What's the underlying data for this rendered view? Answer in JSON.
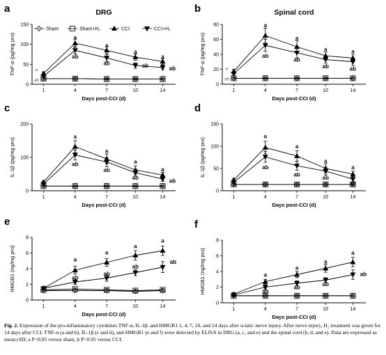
{
  "chart_data": [
    {
      "panel": "a",
      "title": "DRG",
      "type": "line",
      "ylabel": "TNF-α (pg/mg pro)",
      "xlabel": "Days post-CCI (d)",
      "x": [
        1,
        4,
        7,
        10,
        14
      ],
      "xticks": [
        "1",
        "4",
        "7",
        "10",
        "14"
      ],
      "ylim": [
        0,
        150
      ],
      "yticks": [
        "0",
        "50",
        "100",
        "150"
      ],
      "series": [
        {
          "name": "Sham",
          "values": [
            14,
            14,
            13,
            13,
            13
          ],
          "err": [
            2,
            2,
            2,
            2,
            2
          ],
          "marker": "diamond"
        },
        {
          "name": "Sham+H₂",
          "values": [
            14,
            14,
            13,
            13,
            13
          ],
          "err": [
            2,
            2,
            2,
            2,
            2
          ],
          "marker": "square"
        },
        {
          "name": "CCI",
          "values": [
            27,
            103,
            85,
            68,
            57
          ],
          "err": [
            4,
            10,
            9,
            8,
            7
          ],
          "marker": "triangle-up"
        },
        {
          "name": "CCI+H₂",
          "values": [
            20,
            85,
            66,
            47,
            42
          ],
          "err": [
            3,
            9,
            9,
            7,
            6
          ],
          "marker": "triangle-down"
        }
      ],
      "sig_labels": [
        {
          "x": 1,
          "y": 38,
          "text": "a",
          "small": true
        },
        {
          "x": 1,
          "y": 12,
          "text": "ab",
          "small": true
        },
        {
          "x": 4,
          "y": 118,
          "text": "a"
        },
        {
          "x": 4,
          "y": 70,
          "text": "ab"
        },
        {
          "x": 7,
          "y": 98,
          "text": "a"
        },
        {
          "x": 7,
          "y": 53,
          "text": "ab"
        },
        {
          "x": 10,
          "y": 82,
          "text": "a"
        },
        {
          "x": 10,
          "y": 47,
          "text": "ab",
          "dx": 14
        },
        {
          "x": 14,
          "y": 70,
          "text": "a"
        },
        {
          "x": 14,
          "y": 40,
          "text": "ab",
          "dx": 14
        }
      ],
      "legend": [
        {
          "series": 0,
          "label": "Sham"
        },
        {
          "series": 1,
          "label": "Sham+H₂"
        },
        {
          "series": 2,
          "label": "CCI"
        },
        {
          "series": 3,
          "label": "CCI+H₂"
        }
      ]
    },
    {
      "panel": "b",
      "title": "Spinal cord",
      "type": "line",
      "ylabel": "TNF-α (pg/mg pro)",
      "xlabel": "Days post-CCI (d)",
      "x": [
        1,
        4,
        7,
        10,
        14
      ],
      "xticks": [
        "1",
        "4",
        "7",
        "10",
        "14"
      ],
      "ylim": [
        0,
        80
      ],
      "yticks": [
        "0",
        "20",
        "40",
        "60",
        "80"
      ],
      "series": [
        {
          "name": "Sham",
          "values": [
            8,
            8,
            8,
            8,
            8
          ],
          "err": [
            1,
            1,
            1,
            1,
            1
          ],
          "marker": "diamond"
        },
        {
          "name": "Sham+H₂",
          "values": [
            8,
            8,
            8,
            8,
            8
          ],
          "err": [
            1,
            1,
            1,
            1,
            1
          ],
          "marker": "square"
        },
        {
          "name": "CCI",
          "values": [
            17,
            65,
            50,
            38,
            35
          ],
          "err": [
            3,
            10,
            8,
            5,
            5
          ],
          "marker": "triangle-up"
        },
        {
          "name": "CCI+H₂",
          "values": [
            14,
            52,
            42,
            33,
            30
          ],
          "err": [
            3,
            8,
            7,
            5,
            5
          ],
          "marker": "triangle-down"
        }
      ],
      "sig_labels": [
        {
          "x": 1,
          "y": 22,
          "text": "a",
          "small": true
        },
        {
          "x": 1,
          "y": 8,
          "text": "ab",
          "small": true
        },
        {
          "x": 4,
          "y": 79,
          "text": "a"
        },
        {
          "x": 4,
          "y": 38,
          "text": "ab"
        },
        {
          "x": 7,
          "y": 62,
          "text": "a"
        },
        {
          "x": 7,
          "y": 33,
          "text": "ab"
        },
        {
          "x": 10,
          "y": 47,
          "text": "a"
        },
        {
          "x": 10,
          "y": 24,
          "text": "ab"
        },
        {
          "x": 14,
          "y": 44,
          "text": "a"
        },
        {
          "x": 14,
          "y": 21,
          "text": "ab"
        }
      ]
    },
    {
      "panel": "c",
      "title": "",
      "type": "line",
      "ylabel": "IL-1β (pg/mg pro)",
      "xlabel": "Days post-CCI (d)",
      "x": [
        1,
        4,
        7,
        10,
        14
      ],
      "xticks": [
        "1",
        "4",
        "7",
        "10",
        "14"
      ],
      "ylim": [
        0,
        200
      ],
      "yticks": [
        "0",
        "100",
        "200"
      ],
      "series": [
        {
          "name": "Sham",
          "values": [
            14,
            14,
            14,
            14,
            14
          ],
          "err": [
            2,
            2,
            2,
            2,
            2
          ],
          "marker": "diamond"
        },
        {
          "name": "Sham+H₂",
          "values": [
            14,
            14,
            14,
            14,
            14
          ],
          "err": [
            2,
            2,
            2,
            2,
            2
          ],
          "marker": "square"
        },
        {
          "name": "CCI",
          "values": [
            26,
            132,
            95,
            62,
            47
          ],
          "err": [
            4,
            18,
            15,
            12,
            8
          ],
          "marker": "triangle-up"
        },
        {
          "name": "CCI+H₂",
          "values": [
            20,
            107,
            86,
            54,
            35
          ],
          "err": [
            4,
            15,
            14,
            10,
            7
          ],
          "marker": "triangle-down"
        }
      ],
      "sig_labels": [
        {
          "x": 4,
          "y": 162,
          "text": "a"
        },
        {
          "x": 4,
          "y": 80,
          "text": "ab"
        },
        {
          "x": 7,
          "y": 120,
          "text": "a"
        },
        {
          "x": 7,
          "y": 62,
          "text": "ab"
        },
        {
          "x": 10,
          "y": 87,
          "text": "a"
        },
        {
          "x": 10,
          "y": 40,
          "text": "ab"
        },
        {
          "x": 14,
          "y": 65,
          "text": "a"
        },
        {
          "x": 14,
          "y": 30,
          "text": "ab",
          "dx": 14
        }
      ]
    },
    {
      "panel": "d",
      "title": "",
      "type": "line",
      "ylabel": "IL-1β (pg/mg pro)",
      "xlabel": "Days post-CCI (d)",
      "x": [
        1,
        4,
        7,
        10,
        14
      ],
      "xticks": [
        "1",
        "4",
        "7",
        "10",
        "14"
      ],
      "ylim": [
        0,
        150
      ],
      "yticks": [
        "0",
        "50",
        "100",
        "150"
      ],
      "series": [
        {
          "name": "Sham",
          "values": [
            14,
            14,
            14,
            14,
            14
          ],
          "err": [
            2,
            2,
            2,
            2,
            2
          ],
          "marker": "diamond"
        },
        {
          "name": "Sham+H₂",
          "values": [
            14,
            14,
            14,
            14,
            14
          ],
          "err": [
            2,
            2,
            2,
            2,
            2
          ],
          "marker": "square"
        },
        {
          "name": "CCI",
          "values": [
            24,
            97,
            78,
            50,
            37
          ],
          "err": [
            4,
            14,
            12,
            10,
            7
          ],
          "marker": "triangle-up"
        },
        {
          "name": "CCI+H₂",
          "values": [
            19,
            76,
            56,
            44,
            26
          ],
          "err": [
            4,
            12,
            10,
            9,
            6
          ],
          "marker": "triangle-down"
        }
      ],
      "sig_labels": [
        {
          "x": 4,
          "y": 123,
          "text": "a"
        },
        {
          "x": 4,
          "y": 53,
          "text": "ab"
        },
        {
          "x": 7,
          "y": 100,
          "text": "a"
        },
        {
          "x": 7,
          "y": 37,
          "text": "ab"
        },
        {
          "x": 10,
          "y": 67,
          "text": "a"
        },
        {
          "x": 10,
          "y": 30,
          "text": "ab"
        },
        {
          "x": 14,
          "y": 53,
          "text": "a"
        },
        {
          "x": 14,
          "y": 17,
          "text": "ab"
        }
      ]
    },
    {
      "panel": "e",
      "title": "",
      "type": "line",
      "ylabel": "HMGB1 (ng/mg pro)",
      "xlabel": "Days post-CCI (d)",
      "x": [
        1,
        4,
        7,
        10,
        14
      ],
      "xticks": [
        "1",
        "4",
        "7",
        "10",
        "14"
      ],
      "ylim": [
        0,
        8
      ],
      "yticks": [
        "0",
        "2",
        "4",
        "6",
        "8"
      ],
      "series": [
        {
          "name": "Sham",
          "values": [
            1.2,
            1.2,
            1.2,
            1.1,
            1.2
          ],
          "err": [
            0.15,
            0.15,
            0.15,
            0.15,
            0.15
          ],
          "marker": "diamond"
        },
        {
          "name": "Sham+H₂",
          "values": [
            1.3,
            1.4,
            1.3,
            1.2,
            1.3
          ],
          "err": [
            0.15,
            0.15,
            0.15,
            0.15,
            0.15
          ],
          "marker": "square"
        },
        {
          "name": "CCI",
          "values": [
            1.5,
            3.8,
            4.8,
            5.7,
            6.3
          ],
          "err": [
            0.2,
            0.5,
            0.5,
            0.6,
            0.6
          ],
          "marker": "triangle-up"
        },
        {
          "name": "CCI+H₂",
          "values": [
            1.5,
            2.3,
            2.8,
            3.5,
            4.2
          ],
          "err": [
            0.2,
            0.3,
            0.4,
            0.4,
            0.7
          ],
          "marker": "triangle-down"
        }
      ],
      "sig_labels": [
        {
          "x": 4,
          "y": 5.2,
          "text": "a"
        },
        {
          "x": 4,
          "y": 2.9,
          "text": "ab"
        },
        {
          "x": 7,
          "y": 6.1,
          "text": "a"
        },
        {
          "x": 7,
          "y": 3.4,
          "text": "ab"
        },
        {
          "x": 10,
          "y": 6.9,
          "text": "a"
        },
        {
          "x": 10,
          "y": 4.3,
          "text": "ab"
        },
        {
          "x": 14,
          "y": 7.6,
          "text": "a"
        },
        {
          "x": 14,
          "y": 4.9,
          "text": "ab",
          "dx": 15
        }
      ]
    },
    {
      "panel": "f",
      "title": "",
      "type": "line",
      "ylabel": "HMGB1 (ng/mg pro)",
      "xlabel": "Days post-CCI (d)",
      "x": [
        1,
        4,
        7,
        10,
        14
      ],
      "xticks": [
        "1",
        "4",
        "7",
        "10",
        "14"
      ],
      "ylim": [
        0,
        8
      ],
      "yticks": [
        "0",
        "2",
        "4",
        "6",
        "8"
      ],
      "series": [
        {
          "name": "Sham",
          "values": [
            0.9,
            0.9,
            0.9,
            0.9,
            0.9
          ],
          "err": [
            0.1,
            0.1,
            0.1,
            0.1,
            0.1
          ],
          "marker": "diamond"
        },
        {
          "name": "Sham+H₂",
          "values": [
            0.9,
            0.9,
            0.9,
            0.9,
            0.9
          ],
          "err": [
            0.1,
            0.1,
            0.1,
            0.1,
            0.1
          ],
          "marker": "square"
        },
        {
          "name": "CCI",
          "values": [
            1.1,
            2.7,
            3.6,
            4.4,
            5.2
          ],
          "err": [
            0.2,
            0.3,
            0.4,
            0.5,
            0.6
          ],
          "marker": "triangle-up"
        },
        {
          "name": "CCI+H₂",
          "values": [
            1.0,
            2.0,
            2.5,
            2.9,
            3.6
          ],
          "err": [
            0.2,
            0.3,
            0.3,
            0.3,
            0.6
          ],
          "marker": "triangle-down"
        }
      ],
      "sig_labels": [
        {
          "x": 4,
          "y": 3.6,
          "text": "a"
        },
        {
          "x": 4,
          "y": 1.5,
          "text": "ab"
        },
        {
          "x": 7,
          "y": 4.5,
          "text": "a"
        },
        {
          "x": 7,
          "y": 2.0,
          "text": "ab"
        },
        {
          "x": 10,
          "y": 5.3,
          "text": "a"
        },
        {
          "x": 10,
          "y": 2.4,
          "text": "ab"
        },
        {
          "x": 14,
          "y": 6.4,
          "text": "a"
        },
        {
          "x": 14,
          "y": 3.7,
          "text": "ab",
          "dx": 15
        }
      ]
    }
  ],
  "caption": {
    "figure_number": "Fig. 2.",
    "text": "Expression of the pro-inflammatory cytokines TNF-α, IL-1β, and HMGB1 1, 4, 7, 10, and 14 days after sciatic nerve injury. After nerve injury, H₂ treatment was given for 14 days after CCI. TNF-α (a and b), IL-1β (c and d), and HMGB1 (e and f) were detected by ELISA in DRG (a, c, and e) and the spinal cord (b, d, and e). Data are expressed as mean±SD; a P<0.05 versus sham, b P<0.05 versus CCI."
  }
}
